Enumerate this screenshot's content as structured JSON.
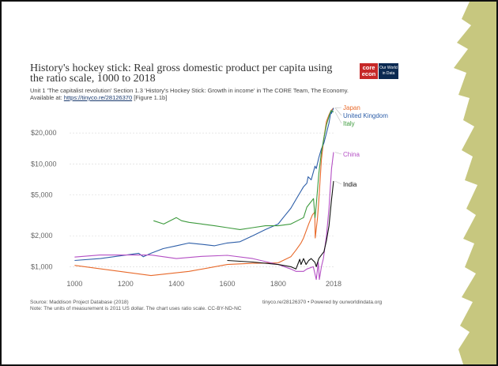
{
  "header": {
    "title": "History's hockey stick: Real gross domestic product per capita using the ratio scale, 1000 to 2018",
    "subtitle": "Unit 1 'The capitalist revolution' Section 1.3 'History's Hockey Stick: Growth in income' in The CORE Team, The Economy.",
    "available_prefix": "Available at: ",
    "available_link": "https://tinyco.re/28126370",
    "available_suffix": " [Figure 1.1b]"
  },
  "logos": {
    "core_line1": "core",
    "core_line2": "econ",
    "owid_line1": "Our World",
    "owid_line2": "in Data"
  },
  "footer": {
    "source": "Source: Maddison Project Database (2018)",
    "note": "Note: The units of measurement is 2011 US dollar. The chart uses ratio scale. CC-BY-ND-NC",
    "credit": "tinyco.re/28126370 • Powered by ourworldindata.org"
  },
  "colors": {
    "japan": "#e8692a",
    "uk": "#2d5ea8",
    "italy": "#3d9a3d",
    "china": "#b44fc4",
    "india": "#111111",
    "grid": "#d8d8d8",
    "deco_green": "#c7c77f"
  },
  "chart_data": {
    "type": "line",
    "scale": "log",
    "xlim": [
      980,
      2018
    ],
    "ylim": [
      800,
      36000
    ],
    "x_ticks": [
      {
        "value": 1000,
        "label": "1000"
      },
      {
        "value": 1200,
        "label": "1200"
      },
      {
        "value": 1400,
        "label": "1400"
      },
      {
        "value": 1600,
        "label": "1600"
      },
      {
        "value": 1800,
        "label": "1800"
      },
      {
        "value": 2018,
        "label": "2018"
      }
    ],
    "y_ticks": [
      {
        "value": 1000,
        "label": "$1,000"
      },
      {
        "value": 2000,
        "label": "$2,000"
      },
      {
        "value": 5000,
        "label": "$5,000"
      },
      {
        "value": 10000,
        "label": "$10,000"
      },
      {
        "value": 20000,
        "label": "$20,000"
      }
    ],
    "grid": true,
    "series": [
      {
        "name": "Japan",
        "color": "#e8692a",
        "points": [
          [
            1000,
            1030
          ],
          [
            1300,
            820
          ],
          [
            1450,
            900
          ],
          [
            1600,
            1050
          ],
          [
            1700,
            1080
          ],
          [
            1800,
            1090
          ],
          [
            1850,
            1250
          ],
          [
            1870,
            1450
          ],
          [
            1890,
            1700
          ],
          [
            1900,
            1900
          ],
          [
            1920,
            2600
          ],
          [
            1935,
            3200
          ],
          [
            1944,
            3400
          ],
          [
            1946,
            1900
          ],
          [
            1955,
            3000
          ],
          [
            1960,
            4400
          ],
          [
            1970,
            11000
          ],
          [
            1980,
            18000
          ],
          [
            1990,
            26000
          ],
          [
            2000,
            30000
          ],
          [
            2008,
            33000
          ],
          [
            2018,
            35000
          ]
        ]
      },
      {
        "name": "United Kingdom",
        "color": "#2d5ea8",
        "points": [
          [
            1000,
            1150
          ],
          [
            1100,
            1200
          ],
          [
            1252,
            1350
          ],
          [
            1270,
            1250
          ],
          [
            1300,
            1350
          ],
          [
            1348,
            1500
          ],
          [
            1400,
            1600
          ],
          [
            1450,
            1700
          ],
          [
            1500,
            1650
          ],
          [
            1550,
            1600
          ],
          [
            1600,
            1700
          ],
          [
            1650,
            1750
          ],
          [
            1700,
            2000
          ],
          [
            1750,
            2300
          ],
          [
            1800,
            2600
          ],
          [
            1820,
            3000
          ],
          [
            1850,
            3700
          ],
          [
            1870,
            4500
          ],
          [
            1900,
            6000
          ],
          [
            1913,
            6500
          ],
          [
            1918,
            7500
          ],
          [
            1930,
            7000
          ],
          [
            1945,
            9500
          ],
          [
            1950,
            9000
          ],
          [
            1960,
            11500
          ],
          [
            1970,
            14000
          ],
          [
            1980,
            16000
          ],
          [
            1990,
            20000
          ],
          [
            2000,
            25000
          ],
          [
            2008,
            33000
          ],
          [
            2010,
            31000
          ],
          [
            2018,
            35000
          ]
        ]
      },
      {
        "name": "Italy",
        "color": "#3d9a3d",
        "points": [
          [
            1310,
            2800
          ],
          [
            1350,
            2600
          ],
          [
            1400,
            3000
          ],
          [
            1420,
            2800
          ],
          [
            1450,
            2700
          ],
          [
            1500,
            2600
          ],
          [
            1550,
            2500
          ],
          [
            1600,
            2400
          ],
          [
            1650,
            2300
          ],
          [
            1700,
            2400
          ],
          [
            1750,
            2500
          ],
          [
            1800,
            2500
          ],
          [
            1850,
            2600
          ],
          [
            1900,
            3000
          ],
          [
            1913,
            3800
          ],
          [
            1939,
            4600
          ],
          [
            1945,
            3000
          ],
          [
            1950,
            4000
          ],
          [
            1960,
            8000
          ],
          [
            1970,
            13000
          ],
          [
            1980,
            18000
          ],
          [
            1990,
            24000
          ],
          [
            2000,
            29000
          ],
          [
            2008,
            33000
          ],
          [
            2018,
            32000
          ]
        ]
      },
      {
        "name": "China",
        "color": "#b44fc4",
        "points": [
          [
            1000,
            1240
          ],
          [
            1100,
            1300
          ],
          [
            1300,
            1300
          ],
          [
            1400,
            1200
          ],
          [
            1500,
            1260
          ],
          [
            1600,
            1290
          ],
          [
            1700,
            1200
          ],
          [
            1800,
            1050
          ],
          [
            1850,
            950
          ],
          [
            1870,
            900
          ],
          [
            1900,
            900
          ],
          [
            1913,
            950
          ],
          [
            1938,
            1000
          ],
          [
            1945,
            850
          ],
          [
            1950,
            750
          ],
          [
            1958,
            1100
          ],
          [
            1962,
            750
          ],
          [
            1970,
            1000
          ],
          [
            1978,
            1200
          ],
          [
            1990,
            2000
          ],
          [
            2000,
            3700
          ],
          [
            2010,
            9000
          ],
          [
            2018,
            13000
          ]
        ]
      },
      {
        "name": "India",
        "color": "#111111",
        "points": [
          [
            1600,
            1150
          ],
          [
            1700,
            1110
          ],
          [
            1800,
            1050
          ],
          [
            1850,
            1000
          ],
          [
            1870,
            950
          ],
          [
            1885,
            1180
          ],
          [
            1890,
            1050
          ],
          [
            1900,
            1200
          ],
          [
            1910,
            1050
          ],
          [
            1920,
            1150
          ],
          [
            1930,
            1200
          ],
          [
            1945,
            1100
          ],
          [
            1950,
            1000
          ],
          [
            1960,
            1200
          ],
          [
            1970,
            1300
          ],
          [
            1980,
            1400
          ],
          [
            1990,
            1800
          ],
          [
            2000,
            2500
          ],
          [
            2010,
            4500
          ],
          [
            2018,
            6800
          ]
        ]
      }
    ],
    "end_labels": [
      {
        "text": "Japan",
        "series": "Japan"
      },
      {
        "text": "United Kingdom",
        "series": "United Kingdom"
      },
      {
        "text": "Italy",
        "series": "Italy"
      },
      {
        "text": "China",
        "series": "China"
      },
      {
        "text": "India",
        "series": "India"
      }
    ]
  }
}
